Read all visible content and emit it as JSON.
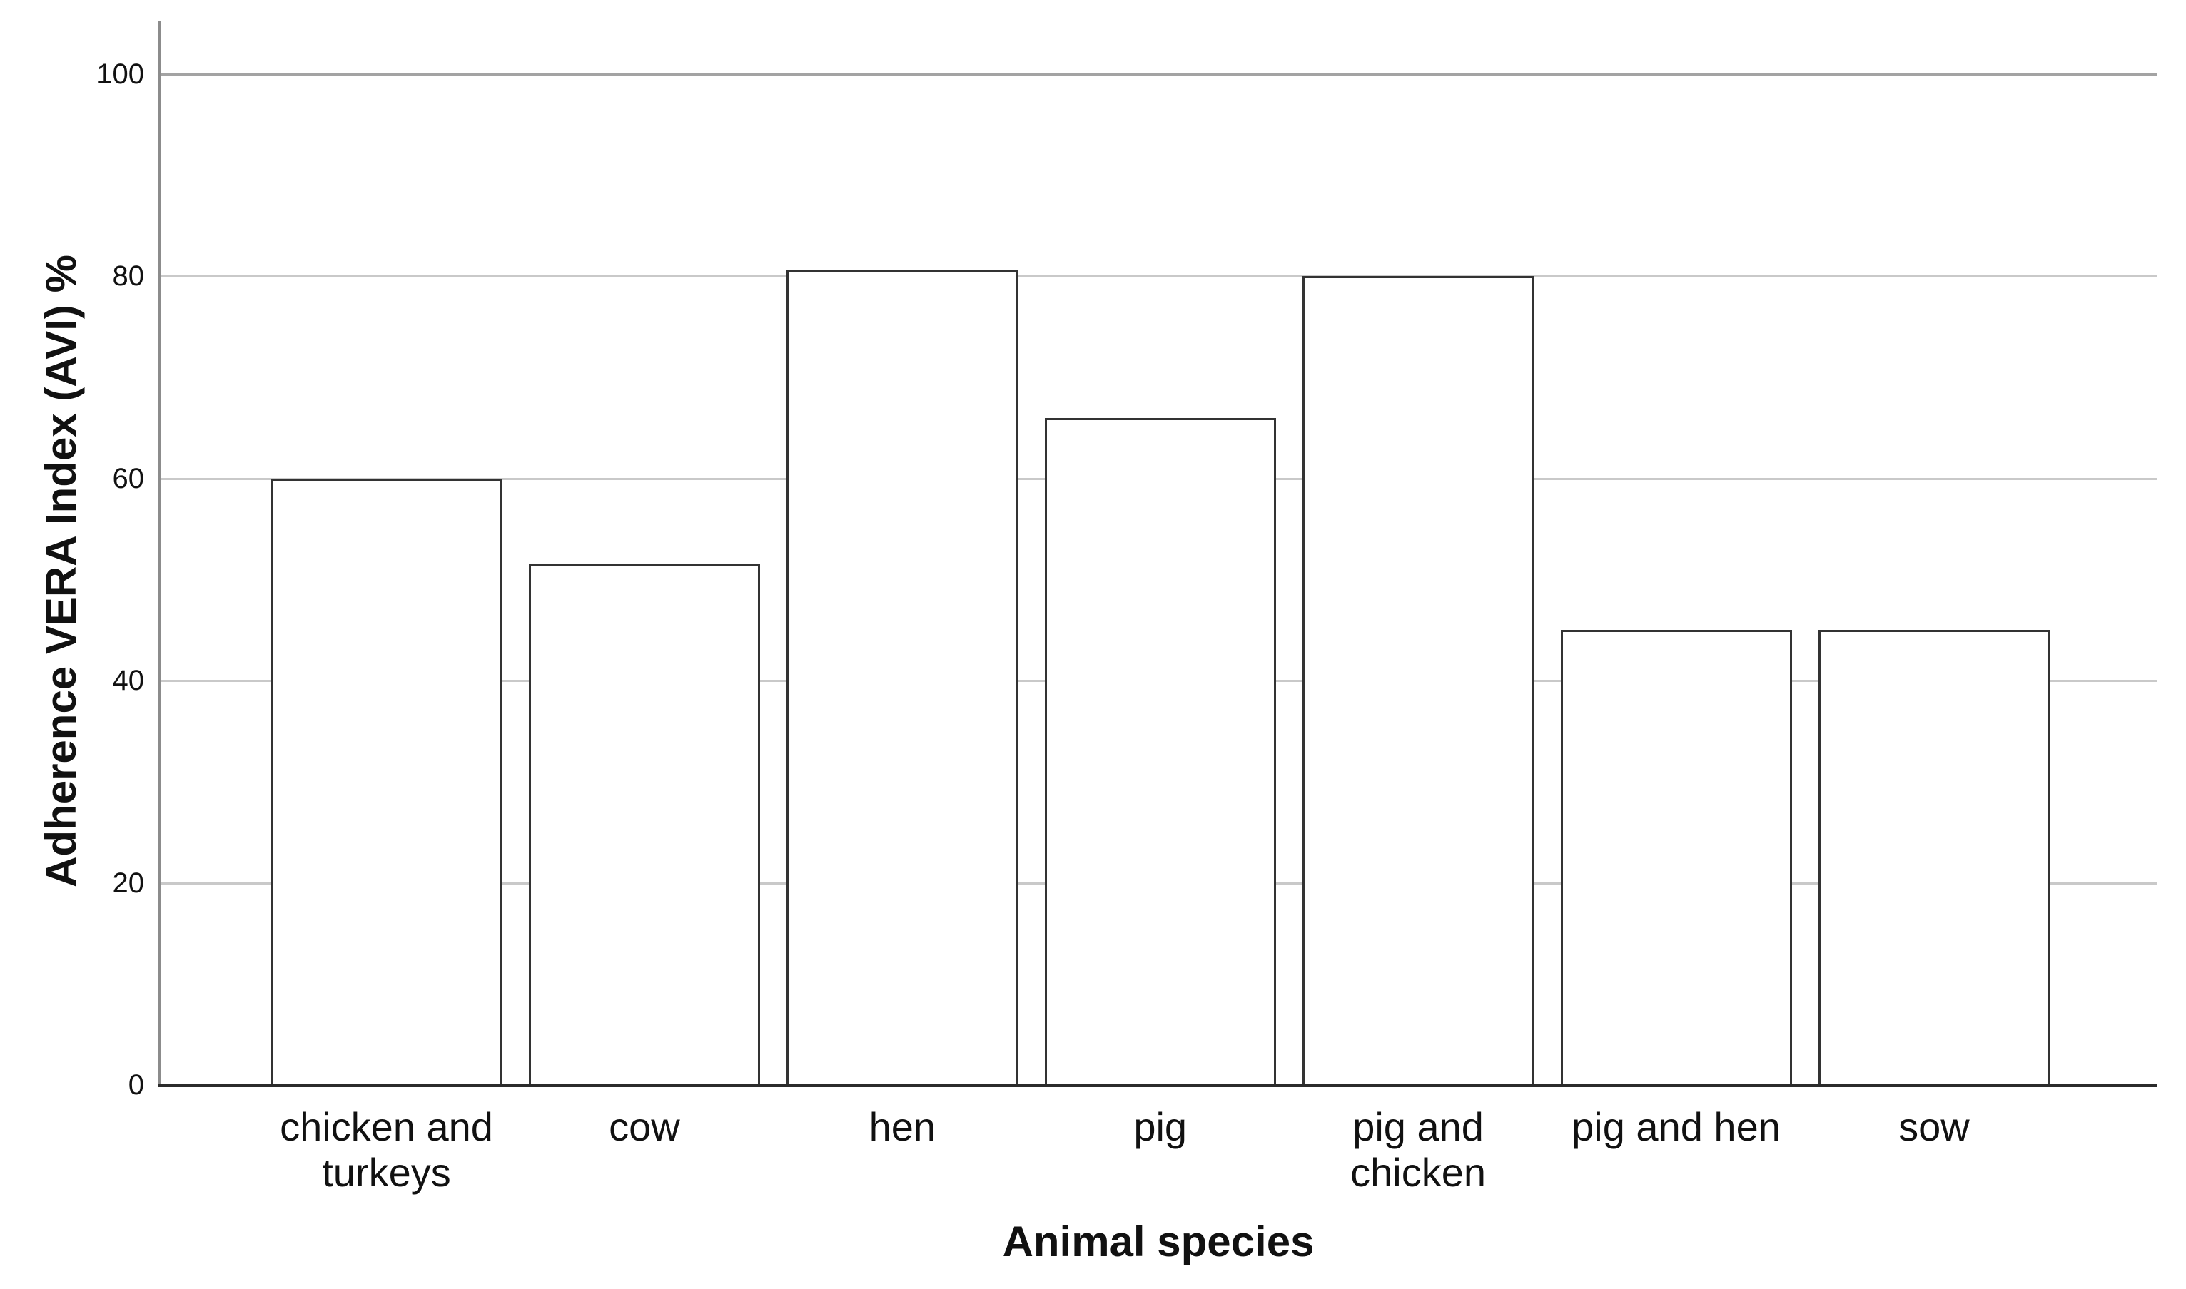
{
  "chart_data": {
    "type": "bar",
    "title": "",
    "xlabel": "Animal species",
    "ylabel": "Adherence VERA Index (AVI) %",
    "categories": [
      "chicken and turkeys",
      "cow",
      "hen",
      "pig",
      "pig and chicken",
      "pig and hen",
      "sow"
    ],
    "values": [
      60,
      51.5,
      80.6,
      66,
      80,
      45,
      45
    ],
    "category_tick_labels": [
      "chicken and\nturkeys",
      "cow",
      "hen",
      "pig",
      "pig and\nchicken",
      "pig and hen",
      "sow"
    ],
    "yticks": [
      0,
      20,
      40,
      60,
      80,
      100
    ],
    "ylim": [
      0,
      105
    ],
    "grid": "horizontal",
    "legend_position": "none",
    "bar_fill_color": "#ffffff",
    "bar_border_color": "#333333",
    "gridline_color": "#c9c9c9",
    "top_gridline_color": "#a3a3a3",
    "y_axis_color": "#8c8c8c",
    "x_axis_color": "#2b2b2b",
    "text_color": "#111111"
  }
}
